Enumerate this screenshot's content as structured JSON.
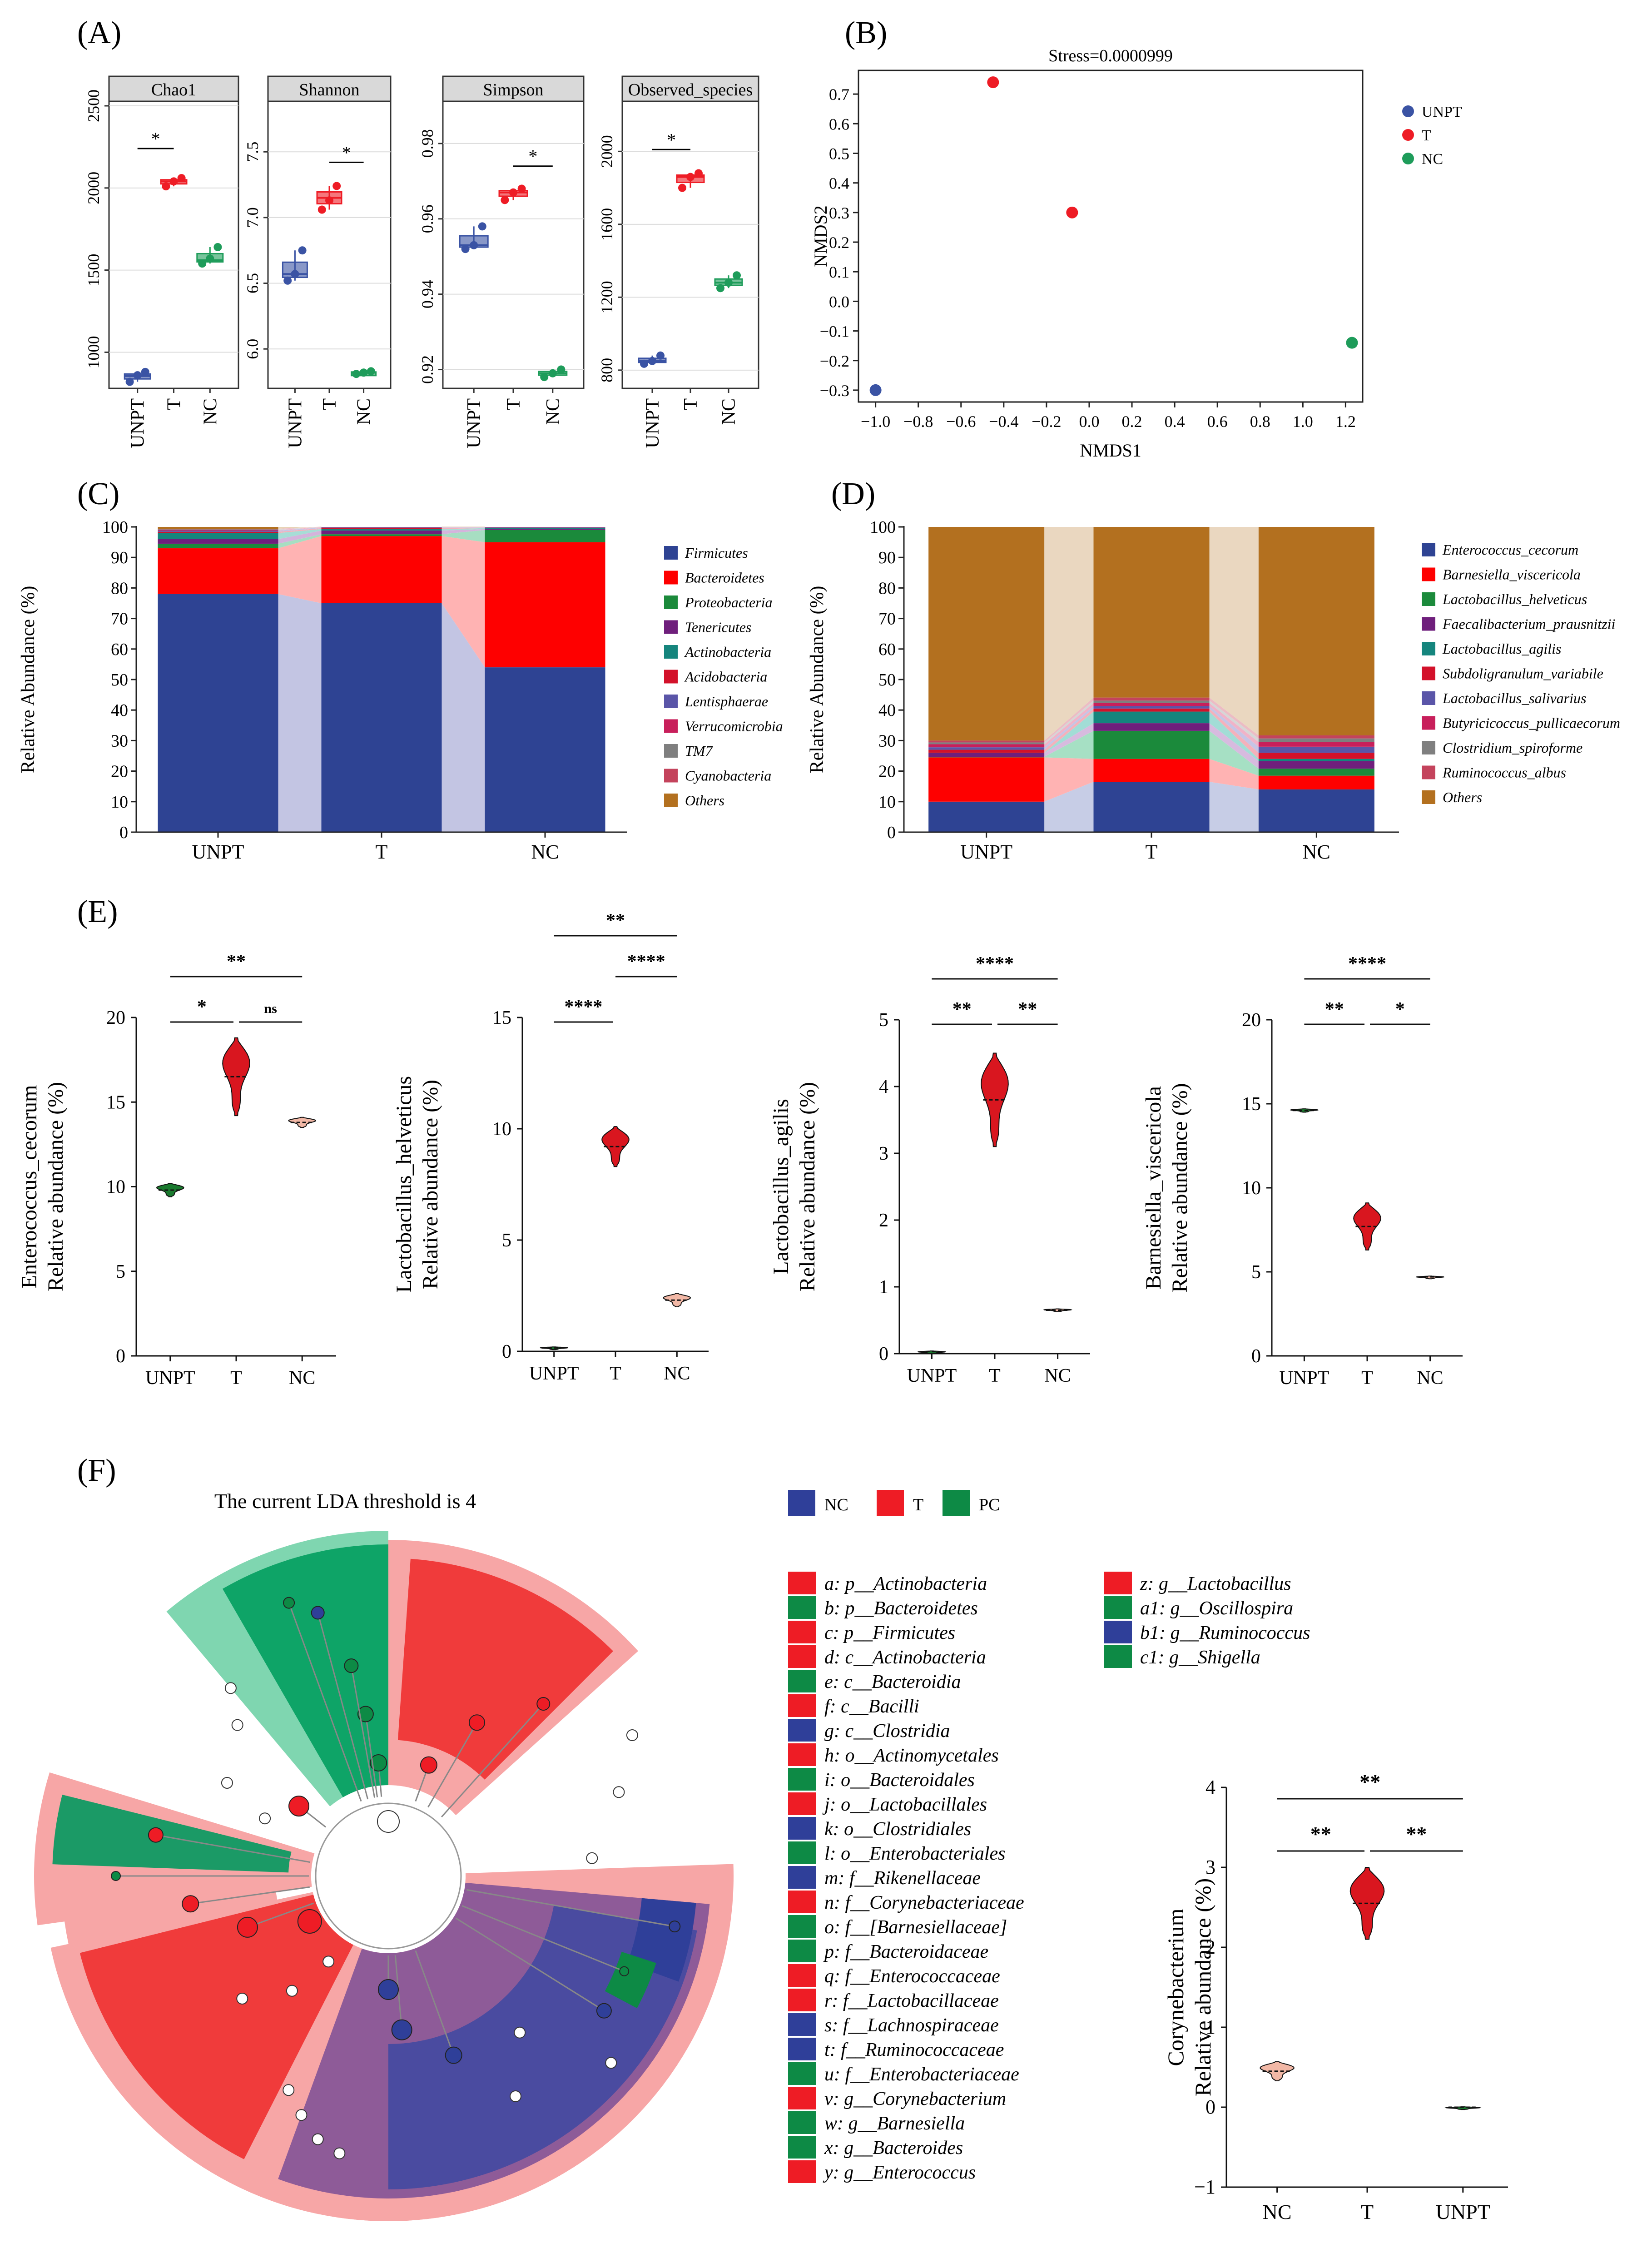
{
  "figure": {
    "panel_labels": [
      "(A)",
      "(B)",
      "(C)",
      "(D)",
      "(E)",
      "(F)"
    ]
  },
  "colors": {
    "UNPT": "#3a53a4",
    "T": "#ee1c25",
    "NC_point": "#1e9c5a",
    "NC_violin": "#f2b8a6",
    "UNPT_violin": "#1a7a2e",
    "strip": "#d9d9d9",
    "firmicutes": "#2e4393",
    "bacteroidetes": "#fe0000",
    "proteobacteria": "#1b8a3b",
    "tenericutes": "#6f1f7c",
    "actinobacteria": "#15857d",
    "acidobacteria": "#d3112a",
    "lentisphaerae": "#5a55a8",
    "verrucomicrobia": "#c81f5b",
    "tm7": "#7f7f7f",
    "cyanobacteria": "#c4435c",
    "others": "#b3701f",
    "lefse_NC": "#2f3f99",
    "lefse_T": "#ee1c25",
    "lefse_PC": "#0d8a45"
  },
  "chart_data": [
    {
      "id": "A",
      "type": "box",
      "groups": [
        "UNPT",
        "T",
        "NC"
      ],
      "facets": [
        {
          "title": "Chao1",
          "ylim": [
            780,
            2500
          ],
          "ticks": [
            1000,
            1500,
            2000,
            2500
          ],
          "tick_labels": [
            "1000",
            "1500",
            "2000",
            "2500"
          ],
          "points": [
            [
              820,
              860,
              880
            ],
            [
              2010,
              2040,
              2060
            ],
            [
              1540,
              1570,
              1640
            ]
          ],
          "median": [
            855,
            2040,
            1560
          ],
          "sig": [
            {
              "from": 0,
              "to": 1,
              "label": "*",
              "y": 2240
            }
          ]
        },
        {
          "title": "Shannon",
          "ylim": [
            5.7,
            7.85
          ],
          "ticks": [
            6.0,
            6.5,
            7.0,
            7.5
          ],
          "tick_labels": [
            "6.0",
            "6.5",
            "7.0",
            "7.5"
          ],
          "points": [
            [
              6.52,
              6.57,
              6.75
            ],
            [
              7.06,
              7.13,
              7.24
            ],
            [
              5.81,
              5.82,
              5.83
            ]
          ],
          "median": [
            6.57,
            7.15,
            5.82
          ],
          "sig": [
            {
              "from": 1,
              "to": 2,
              "label": "*",
              "y": 7.42
            }
          ]
        },
        {
          "title": "Simpson",
          "ylim": [
            0.915,
            0.99
          ],
          "ticks": [
            0.92,
            0.94,
            0.96,
            0.98
          ],
          "tick_labels": [
            "0.92",
            "0.94",
            "0.96",
            "0.98"
          ],
          "points": [
            [
              0.952,
              0.953,
              0.958
            ],
            [
              0.965,
              0.967,
              0.968
            ],
            [
              0.918,
              0.919,
              0.92
            ]
          ],
          "median": [
            0.953,
            0.967,
            0.919
          ],
          "sig": [
            {
              "from": 1,
              "to": 2,
              "label": "*",
              "y": 0.974
            }
          ]
        },
        {
          "title": "Observed_species",
          "ylim": [
            700,
            2250
          ],
          "ticks": [
            800,
            1200,
            1600,
            2000
          ],
          "tick_labels": [
            "800",
            "1200",
            "1600",
            "2000"
          ],
          "points": [
            [
              835,
              850,
              880
            ],
            [
              1800,
              1860,
              1880
            ],
            [
              1250,
              1280,
              1320
            ]
          ],
          "median": [
            850,
            1860,
            1280
          ],
          "sig": [
            {
              "from": 0,
              "to": 1,
              "label": "*",
              "y": 2010
            }
          ]
        }
      ]
    },
    {
      "id": "B",
      "type": "scatter",
      "title": "Stress=0.0000999",
      "xlabel": "NMDS1",
      "ylabel": "NMDS2",
      "xlim": [
        -1.08,
        1.28
      ],
      "ylim": [
        -0.34,
        0.78
      ],
      "xticks": [
        -1.0,
        -0.8,
        -0.6,
        -0.4,
        -0.2,
        0.0,
        0.2,
        0.4,
        0.6,
        0.8,
        1.0,
        1.2
      ],
      "xtick_labels": [
        "−1.0",
        "−0.8",
        "−0.6",
        "−0.4",
        "−0.2",
        "0.0",
        "0.2",
        "0.4",
        "0.6",
        "0.8",
        "1.0",
        "1.2"
      ],
      "yticks": [
        -0.3,
        -0.2,
        -0.1,
        0.0,
        0.1,
        0.2,
        0.3,
        0.4,
        0.5,
        0.6,
        0.7
      ],
      "ytick_labels": [
        "−0.3",
        "−0.2",
        "−0.1",
        "0.0",
        "0.1",
        "0.2",
        "0.3",
        "0.4",
        "0.5",
        "0.6",
        "0.7"
      ],
      "points": [
        {
          "group": "UNPT",
          "x": -1.0,
          "y": -0.3
        },
        {
          "group": "T",
          "x": -0.45,
          "y": 0.74
        },
        {
          "group": "T",
          "x": -0.08,
          "y": 0.3
        },
        {
          "group": "NC",
          "x": 1.23,
          "y": -0.14
        }
      ],
      "legend": [
        "UNPT",
        "T",
        "NC"
      ]
    },
    {
      "id": "C",
      "type": "stacked_bar",
      "ylabel": "Relative Abundance (%)",
      "ylim": [
        0,
        100
      ],
      "yticks": [
        0,
        10,
        20,
        30,
        40,
        50,
        60,
        70,
        80,
        90,
        100
      ],
      "categories": [
        "UNPT",
        "T",
        "NC"
      ],
      "series": [
        {
          "name": "Firmicutes",
          "values": [
            78,
            75,
            54
          ]
        },
        {
          "name": "Bacteroidetes",
          "values": [
            15,
            22,
            41
          ]
        },
        {
          "name": "Proteobacteria",
          "values": [
            1.5,
            0.6,
            4
          ]
        },
        {
          "name": "Tenericutes",
          "values": [
            1.5,
            1.2,
            0.3
          ]
        },
        {
          "name": "Actinobacteria",
          "values": [
            2,
            0.5,
            0.3
          ]
        },
        {
          "name": "Acidobacteria",
          "values": [
            0.4,
            0.3,
            0.1
          ]
        },
        {
          "name": "Lentisphaerae",
          "values": [
            0.4,
            0.2,
            0.1
          ]
        },
        {
          "name": "Verrucomicrobia",
          "values": [
            0.2,
            0.1,
            0.1
          ]
        },
        {
          "name": "TM7",
          "values": [
            0.2,
            0.1,
            0.1
          ]
        },
        {
          "name": "Cyanobacteria",
          "values": [
            0.2,
            0.1,
            0.1
          ]
        },
        {
          "name": "Others",
          "values": [
            0.6,
            0.0,
            0.0
          ]
        }
      ]
    },
    {
      "id": "D",
      "type": "stacked_bar",
      "ylabel": "Relative Abundance (%)",
      "ylim": [
        0,
        100
      ],
      "yticks": [
        0,
        10,
        20,
        30,
        40,
        50,
        60,
        70,
        80,
        90,
        100
      ],
      "categories": [
        "UNPT",
        "T",
        "NC"
      ],
      "series": [
        {
          "name": "Enterococcus_cecorum",
          "values": [
            10,
            16.5,
            14
          ]
        },
        {
          "name": "Barnesiella_viscericola",
          "values": [
            14.5,
            7.5,
            4.5
          ]
        },
        {
          "name": "Lactobacillus_helveticus",
          "values": [
            0.2,
            9.2,
            2.3
          ]
        },
        {
          "name": "Faecalibacterium_prausnitzii",
          "values": [
            1.2,
            2.5,
            2.5
          ]
        },
        {
          "name": "Lactobacillus_agilis",
          "values": [
            0.1,
            3.8,
            0.7
          ]
        },
        {
          "name": "Subdoligranulum_variabile",
          "values": [
            1.0,
            1.0,
            2.0
          ]
        },
        {
          "name": "Lactobacillus_salivarius",
          "values": [
            0.8,
            0.8,
            2.0
          ]
        },
        {
          "name": "Butyricicoccus_pullicaecorum",
          "values": [
            1.0,
            1.0,
            1.5
          ]
        },
        {
          "name": "Clostridium_spiroforme",
          "values": [
            0.6,
            0.8,
            1.2
          ]
        },
        {
          "name": "Ruminococcus_albus",
          "values": [
            0.6,
            1.0,
            1.0
          ]
        },
        {
          "name": "Others",
          "values": [
            70,
            56,
            68.3
          ]
        }
      ]
    },
    {
      "id": "E",
      "type": "violin",
      "groups": [
        "UNPT",
        "T",
        "NC"
      ],
      "panels": [
        {
          "ylabel1": "Enterococcus_cecorum",
          "ylabel2": "Relative abundance (%)",
          "ylim": [
            0,
            20
          ],
          "yticks": [
            0,
            5,
            10,
            15,
            20
          ],
          "medians": [
            9.8,
            16.5,
            13.8
          ],
          "spread": [
            0.4,
            2.3,
            0.3
          ],
          "colors": [
            "#1a7a2e",
            "#d9161f",
            "#f2b8a6"
          ],
          "sig": [
            {
              "from": 0,
              "to": 2,
              "label": "**",
              "level": 2
            },
            {
              "from": 0,
              "to": 1,
              "label": "*",
              "level": 1
            },
            {
              "from": 1,
              "to": 2,
              "label": "ns",
              "level": 1
            }
          ]
        },
        {
          "ylabel1": "Lactobacillus_helveticus",
          "ylabel2": "Relative abundance (%)",
          "ylim": [
            0,
            15
          ],
          "yticks": [
            0,
            5,
            10,
            15
          ],
          "medians": [
            0.15,
            9.2,
            2.3
          ],
          "spread": [
            0.05,
            0.9,
            0.3
          ],
          "colors": [
            "#1a7a2e",
            "#d9161f",
            "#f2b8a6"
          ],
          "sig": [
            {
              "from": 0,
              "to": 2,
              "label": "**",
              "level": 3
            },
            {
              "from": 1,
              "to": 2,
              "label": "****",
              "level": 2
            },
            {
              "from": 0,
              "to": 1,
              "label": "****",
              "level": 1
            }
          ]
        },
        {
          "ylabel1": "Lactobacillus_agilis",
          "ylabel2": "Relative abundance (%)",
          "ylim": [
            0,
            5
          ],
          "yticks": [
            0,
            1,
            2,
            3,
            4,
            5
          ],
          "medians": [
            0.03,
            3.8,
            0.65
          ],
          "spread": [
            0.01,
            0.7,
            0.02
          ],
          "colors": [
            "#1a7a2e",
            "#d9161f",
            "#f2b8a6"
          ],
          "sig": [
            {
              "from": 0,
              "to": 2,
              "label": "****",
              "level": 2
            },
            {
              "from": 0,
              "to": 1,
              "label": "**",
              "level": 1
            },
            {
              "from": 1,
              "to": 2,
              "label": "**",
              "level": 1
            }
          ]
        },
        {
          "ylabel1": "Barnesiella_viscericola",
          "ylabel2": "Relative abundance (%)",
          "ylim": [
            0,
            20
          ],
          "yticks": [
            0,
            5,
            10,
            15,
            20
          ],
          "medians": [
            14.6,
            7.7,
            4.7
          ],
          "spread": [
            0.1,
            1.4,
            0.05
          ],
          "colors": [
            "#1a7a2e",
            "#d9161f",
            "#f2b8a6"
          ],
          "sig": [
            {
              "from": 0,
              "to": 2,
              "label": "****",
              "level": 2
            },
            {
              "from": 0,
              "to": 1,
              "label": "**",
              "level": 1
            },
            {
              "from": 1,
              "to": 2,
              "label": "*",
              "level": 1
            }
          ]
        }
      ]
    },
    {
      "id": "F",
      "type": "cladogram",
      "title": "The current LDA threshold is 4",
      "legend_groups": [
        {
          "name": "NC",
          "color": "#2f3f99"
        },
        {
          "name": "T",
          "color": "#ee1c25"
        },
        {
          "name": "PC",
          "color": "#0d8a45"
        }
      ],
      "taxa": [
        {
          "key": "a",
          "text": "a: p__Actinobacteria",
          "group": "T"
        },
        {
          "key": "b",
          "text": "b: p__Bacteroidetes",
          "group": "PC"
        },
        {
          "key": "c",
          "text": "c: p__Firmicutes",
          "group": "T"
        },
        {
          "key": "d",
          "text": "d: c__Actinobacteria",
          "group": "T"
        },
        {
          "key": "e",
          "text": "e: c__Bacteroidia",
          "group": "PC"
        },
        {
          "key": "f",
          "text": "f: c__Bacilli",
          "group": "T"
        },
        {
          "key": "g",
          "text": "g: c__Clostridia",
          "group": "NC"
        },
        {
          "key": "h",
          "text": "h: o__Actinomycetales",
          "group": "T"
        },
        {
          "key": "i",
          "text": "i: o__Bacteroidales",
          "group": "PC"
        },
        {
          "key": "j",
          "text": "j: o__Lactobacillales",
          "group": "T"
        },
        {
          "key": "k",
          "text": "k: o__Clostridiales",
          "group": "NC"
        },
        {
          "key": "l",
          "text": "l: o__Enterobacteriales",
          "group": "PC"
        },
        {
          "key": "m",
          "text": "m: f__Rikenellaceae",
          "group": "NC"
        },
        {
          "key": "n",
          "text": "n: f__Corynebacteriaceae",
          "group": "T"
        },
        {
          "key": "o",
          "text": "o: f__[Barnesiellaceae]",
          "group": "PC"
        },
        {
          "key": "p",
          "text": "p: f__Bacteroidaceae",
          "group": "PC"
        },
        {
          "key": "q",
          "text": "q: f__Enterococcaceae",
          "group": "T"
        },
        {
          "key": "r",
          "text": "r: f__Lactobacillaceae",
          "group": "T"
        },
        {
          "key": "s",
          "text": "s: f__Lachnospiraceae",
          "group": "NC"
        },
        {
          "key": "t",
          "text": "t: f__Ruminococcaceae",
          "group": "NC"
        },
        {
          "key": "u",
          "text": "u: f__Enterobacteriaceae",
          "group": "PC"
        },
        {
          "key": "v",
          "text": "v: g__Corynebacterium",
          "group": "T"
        },
        {
          "key": "w",
          "text": "w: g__Barnesiella",
          "group": "PC"
        },
        {
          "key": "x",
          "text": "x: g__Bacteroides",
          "group": "PC"
        },
        {
          "key": "y",
          "text": "y: g__Enterococcus",
          "group": "T"
        },
        {
          "key": "z",
          "text": "z: g__Lactobacillus",
          "group": "T"
        },
        {
          "key": "a1",
          "text": "a1: g__Oscillospira",
          "group": "PC"
        },
        {
          "key": "b1",
          "text": "b1: g__Ruminococcus",
          "group": "NC"
        },
        {
          "key": "c1",
          "text": "c1: g__Shigella",
          "group": "PC"
        }
      ]
    },
    {
      "id": "F_violin",
      "type": "violin",
      "groups": [
        "NC",
        "T",
        "UNPT"
      ],
      "ylabel1": "Corynebacterium",
      "ylabel2": "Relative abundance (%)",
      "ylim": [
        -1,
        4
      ],
      "yticks": [
        -1,
        0,
        1,
        2,
        3,
        4
      ],
      "ytick_labels": [
        "−1",
        "0",
        "1",
        "2",
        "3",
        "4"
      ],
      "medians": [
        0.45,
        2.55,
        0.0
      ],
      "spread": [
        0.12,
        0.45,
        0.005
      ],
      "colors": [
        "#f2b8a6",
        "#d9161f",
        "#1a7a2e"
      ],
      "sig": [
        {
          "from": 0,
          "to": 2,
          "label": "**",
          "level": 2
        },
        {
          "from": 0,
          "to": 1,
          "label": "**",
          "level": 1
        },
        {
          "from": 1,
          "to": 2,
          "label": "**",
          "level": 1
        }
      ]
    }
  ]
}
